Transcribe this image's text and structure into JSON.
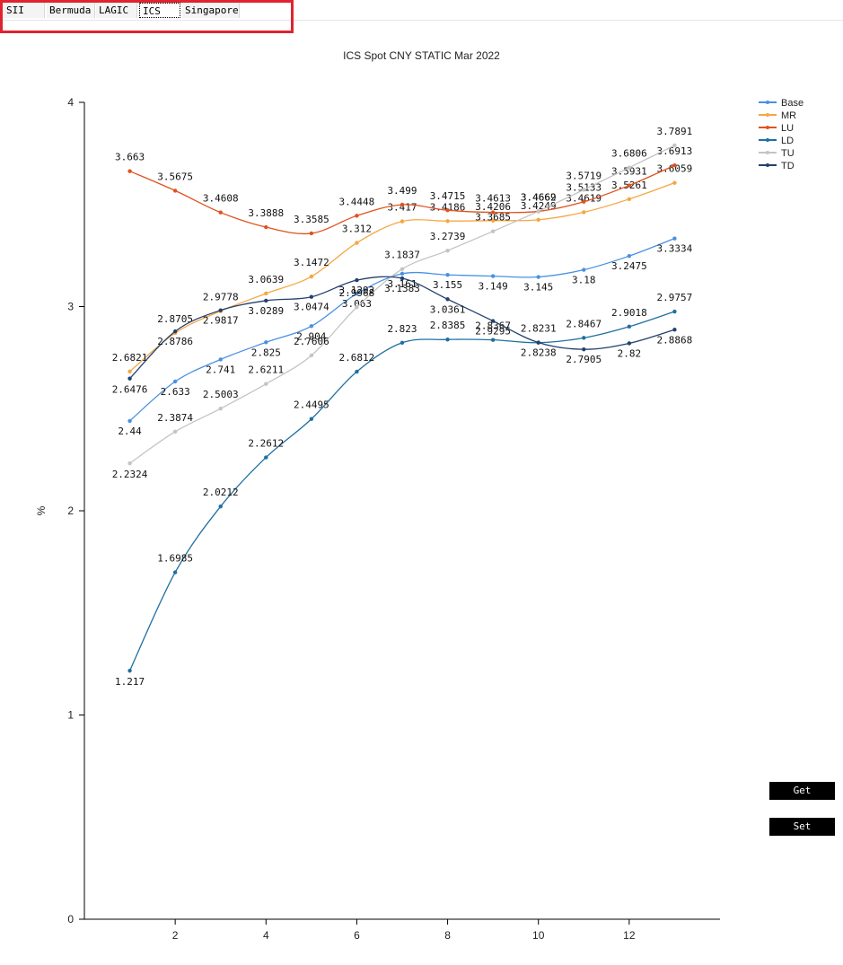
{
  "tabs": [
    {
      "label": "SII"
    },
    {
      "label": "Bermuda"
    },
    {
      "label": "LAGIC"
    },
    {
      "label": "ICS"
    },
    {
      "label": "Singapore"
    }
  ],
  "buttons": {
    "get_label": "Get",
    "set_label": "Set"
  },
  "colors": {
    "Base": "#4a90e2",
    "MR": "#f5a742",
    "LU": "#e0521e",
    "LD": "#1f6fa0",
    "TU": "#c4c4c4",
    "TD": "#23406e"
  },
  "chart_data": {
    "type": "line",
    "title": "ICS Spot CNY STATIC Mar 2022",
    "ylabel": "%",
    "xlabel": "",
    "x": [
      1,
      2,
      3,
      4,
      5,
      6,
      7,
      8,
      9,
      10,
      11,
      12,
      13
    ],
    "xticks": [
      2,
      4,
      6,
      8,
      10,
      12
    ],
    "yticks": [
      0,
      1,
      2,
      3,
      4
    ],
    "xlim": [
      0,
      14
    ],
    "ylim": [
      0,
      4
    ],
    "grid": false,
    "legend_position": "top-right",
    "series": [
      {
        "name": "Base",
        "values": [
          2.44,
          2.633,
          2.741,
          2.825,
          2.904,
          3.063,
          3.161,
          3.155,
          3.149,
          3.145,
          3.18,
          3.2475,
          3.3334
        ]
      },
      {
        "name": "MR",
        "values": [
          2.6821,
          2.8705,
          2.9778,
          3.0639,
          3.1472,
          3.312,
          3.417,
          3.4186,
          3.4206,
          3.4249,
          3.4619,
          3.5261,
          3.6059
        ]
      },
      {
        "name": "LU",
        "values": [
          3.663,
          3.5675,
          3.4608,
          3.3888,
          3.3585,
          3.4448,
          3.499,
          3.4715,
          3.4613,
          3.4662,
          3.5133,
          3.5931,
          3.6913
        ]
      },
      {
        "name": "LD",
        "values": [
          1.217,
          1.6985,
          2.0212,
          2.2612,
          2.4495,
          2.6812,
          2.823,
          2.8385,
          2.8367,
          2.8231,
          2.8467,
          2.9018,
          2.9757
        ]
      },
      {
        "name": "TU",
        "values": [
          2.2324,
          2.3874,
          2.5003,
          2.6211,
          2.7606,
          2.9968,
          3.1837,
          3.2739,
          3.3685,
          3.4669,
          3.5719,
          3.6806,
          3.7891
        ]
      },
      {
        "name": "TD",
        "values": [
          2.6476,
          2.8786,
          2.9817,
          3.0289,
          3.0474,
          3.1292,
          3.1383,
          3.0361,
          2.9295,
          2.8238,
          2.7905,
          2.82,
          2.8868
        ]
      }
    ]
  }
}
